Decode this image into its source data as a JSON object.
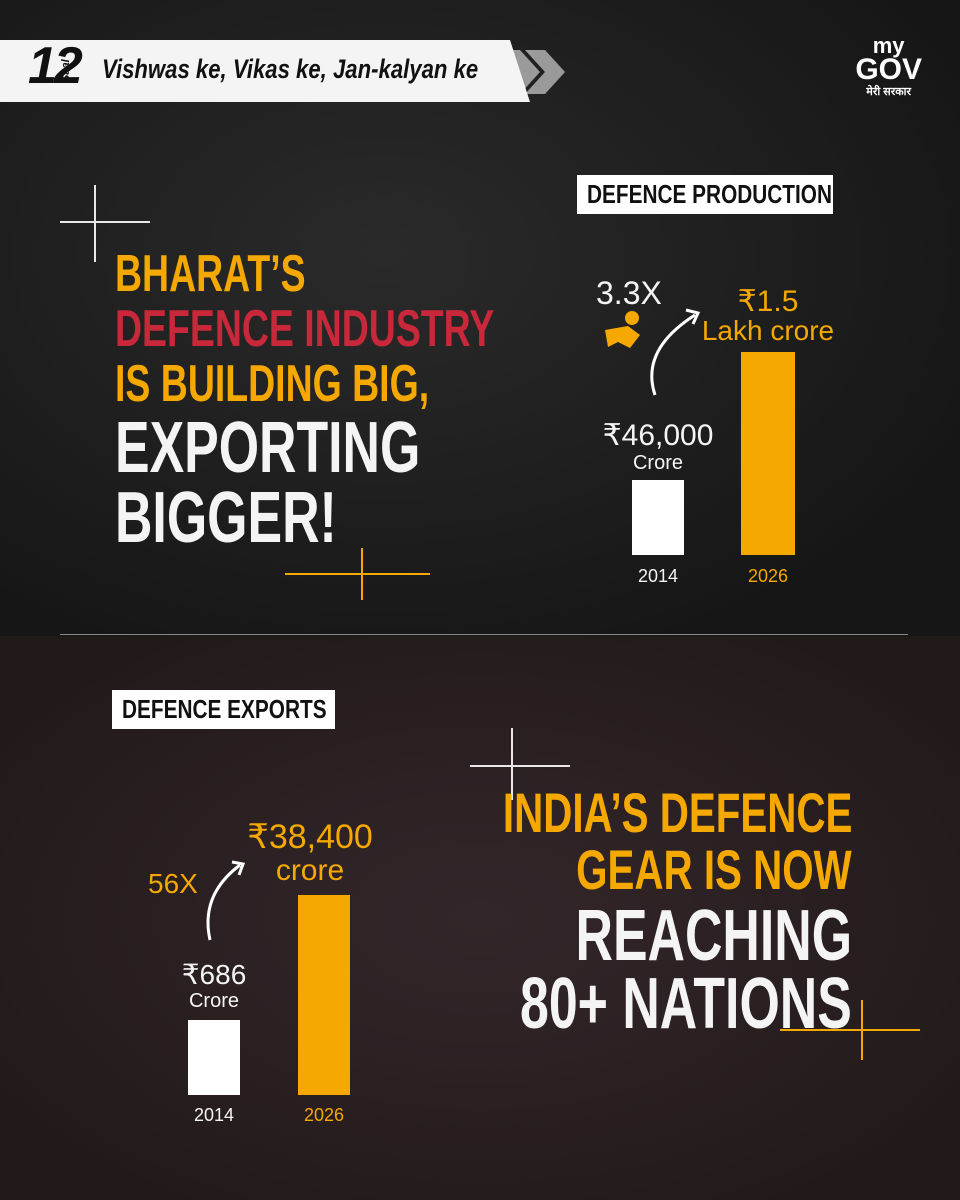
{
  "header": {
    "badge_number": "12",
    "badge_small": "Saal",
    "tagline": "Vishwas ke, Vikas ke, Jan-kalyan ke",
    "logo_top": "my",
    "logo_main": "GOV",
    "logo_sub": "मेरी सरकार"
  },
  "production": {
    "label": "DEFENCE PRODUCTION",
    "headline": [
      "BHARAT’S",
      "DEFENCE INDUSTRY",
      "IS BUILDING BIG,",
      "EXPORTING",
      "BIGGER!"
    ],
    "multiplier": "3.3X",
    "bars": [
      {
        "value": "₹46,000",
        "unit": "Crore",
        "year": "2014"
      },
      {
        "value": "₹1.5",
        "unit": "Lakh crore",
        "year": "2026"
      }
    ]
  },
  "exports": {
    "label": "DEFENCE EXPORTS",
    "headline": [
      "INDIA’S DEFENCE",
      "GEAR IS NOW",
      "REACHING",
      "80+ NATIONS"
    ],
    "multiplier": "56X",
    "bars": [
      {
        "value": "₹686",
        "unit": "Crore",
        "year": "2014"
      },
      {
        "value": "₹38,400",
        "unit": "crore",
        "year": "2026"
      }
    ]
  }
}
